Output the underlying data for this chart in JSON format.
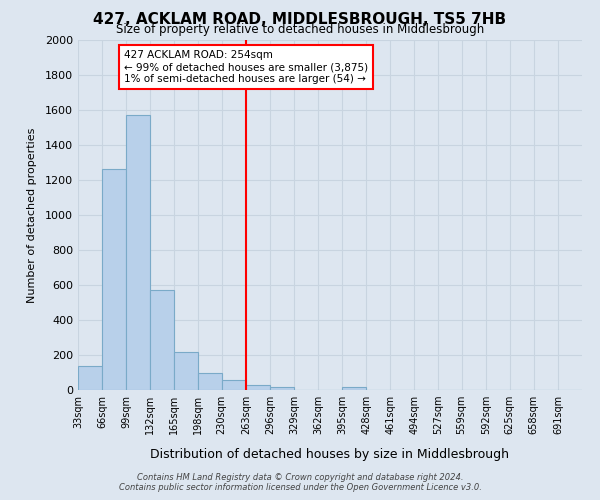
{
  "title": "427, ACKLAM ROAD, MIDDLESBROUGH, TS5 7HB",
  "subtitle": "Size of property relative to detached houses in Middlesbrough",
  "xlabel": "Distribution of detached houses by size in Middlesbrough",
  "ylabel": "Number of detached properties",
  "bin_edges": [
    33,
    66,
    99,
    132,
    165,
    198,
    230,
    263,
    296,
    329,
    362,
    395,
    428,
    461,
    494,
    527,
    559,
    592,
    625,
    658,
    691,
    724
  ],
  "bin_labels": [
    "33sqm",
    "66sqm",
    "99sqm",
    "132sqm",
    "165sqm",
    "198sqm",
    "230sqm",
    "263sqm",
    "296sqm",
    "329sqm",
    "362sqm",
    "395sqm",
    "428sqm",
    "461sqm",
    "494sqm",
    "527sqm",
    "559sqm",
    "592sqm",
    "625sqm",
    "658sqm",
    "691sqm"
  ],
  "counts": [
    140,
    1265,
    1570,
    570,
    215,
    100,
    55,
    28,
    15,
    0,
    0,
    15,
    0,
    0,
    0,
    0,
    0,
    0,
    0,
    0,
    0
  ],
  "bar_color": "#b8d0ea",
  "bar_edge_color": "#7aaac8",
  "property_line_x": 263,
  "property_line_color": "red",
  "annotation_line1": "427 ACKLAM ROAD: 254sqm",
  "annotation_line2": "← 99% of detached houses are smaller (3,875)",
  "annotation_line3": "1% of semi-detached houses are larger (54) →",
  "annotation_box_color": "white",
  "annotation_box_edge_color": "red",
  "ylim": [
    0,
    2000
  ],
  "yticks": [
    0,
    200,
    400,
    600,
    800,
    1000,
    1200,
    1400,
    1600,
    1800,
    2000
  ],
  "grid_color": "#c8d4e0",
  "background_color": "#dde6f0",
  "footer_line1": "Contains HM Land Registry data © Crown copyright and database right 2024.",
  "footer_line2": "Contains public sector information licensed under the Open Government Licence v3.0."
}
